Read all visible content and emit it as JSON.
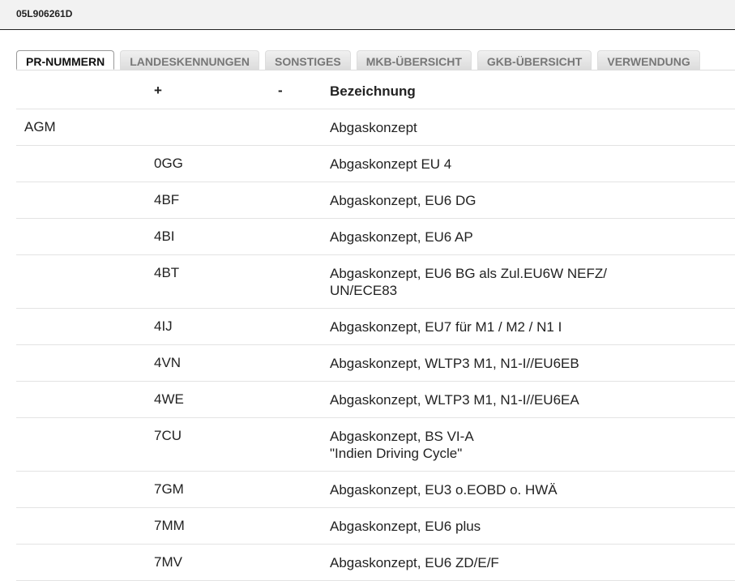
{
  "header": {
    "title": "05L906261D"
  },
  "tabs": [
    {
      "label": "PR-NUMMERN",
      "active": true
    },
    {
      "label": "LANDESKENNUNGEN"
    },
    {
      "label": "SONSTIGES"
    },
    {
      "label": "MKB-ÜBERSICHT"
    },
    {
      "label": "GKB-ÜBERSICHT"
    },
    {
      "label": "VERWENDUNG"
    }
  ],
  "table": {
    "columns": [
      "",
      "+",
      "-",
      "Bezeichnung"
    ],
    "rows": [
      {
        "group": "AGM",
        "plus": "",
        "minus": "",
        "desc": "Abgaskonzept"
      },
      {
        "group": "",
        "plus": "0GG",
        "minus": "",
        "desc": "Abgaskonzept EU 4"
      },
      {
        "group": "",
        "plus": "4BF",
        "minus": "",
        "desc": "Abgaskonzept, EU6 DG"
      },
      {
        "group": "",
        "plus": "4BI",
        "minus": "",
        "desc": "Abgaskonzept, EU6 AP"
      },
      {
        "group": "",
        "plus": "4BT",
        "minus": "",
        "desc": "Abgaskonzept, EU6 BG als Zul.EU6W NEFZ/\nUN/ECE83"
      },
      {
        "group": "",
        "plus": "4IJ",
        "minus": "",
        "desc": "Abgaskonzept, EU7 für M1 / M2 / N1 I"
      },
      {
        "group": "",
        "plus": "4VN",
        "minus": "",
        "desc": "Abgaskonzept, WLTP3 M1, N1-I//EU6EB"
      },
      {
        "group": "",
        "plus": "4WE",
        "minus": "",
        "desc": "Abgaskonzept, WLTP3 M1, N1-I//EU6EA"
      },
      {
        "group": "",
        "plus": "7CU",
        "minus": "",
        "desc": "Abgaskonzept, BS VI-A\n\"Indien Driving Cycle\""
      },
      {
        "group": "",
        "plus": "7GM",
        "minus": "",
        "desc": "Abgaskonzept, EU3 o.EOBD o. HWÄ"
      },
      {
        "group": "",
        "plus": "7MM",
        "minus": "",
        "desc": "Abgaskonzept, EU6 plus"
      },
      {
        "group": "",
        "plus": "7MV",
        "minus": "",
        "desc": "Abgaskonzept, EU6 ZD/E/F"
      }
    ]
  }
}
